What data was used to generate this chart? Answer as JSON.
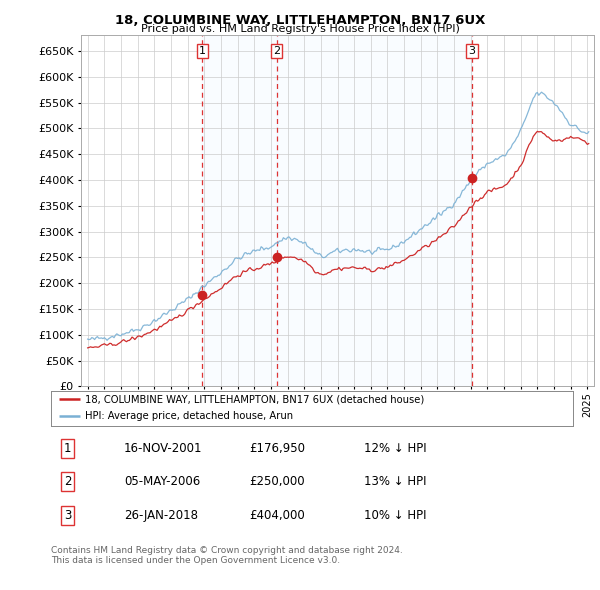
{
  "title": "18, COLUMBINE WAY, LITTLEHAMPTON, BN17 6UX",
  "subtitle": "Price paid vs. HM Land Registry's House Price Index (HPI)",
  "ytick_values": [
    0,
    50000,
    100000,
    150000,
    200000,
    250000,
    300000,
    350000,
    400000,
    450000,
    500000,
    550000,
    600000,
    650000
  ],
  "ylim": [
    0,
    680000
  ],
  "xlim_start": 1994.6,
  "xlim_end": 2025.4,
  "sale_dates": [
    2001.88,
    2006.34,
    2018.07
  ],
  "sale_prices": [
    176950,
    250000,
    404000
  ],
  "hpi_line_color": "#7ab0d4",
  "price_line_color": "#cc2222",
  "sale_dot_color": "#cc2222",
  "vline_color": "#dd3333",
  "shade_color": "#ddeeff",
  "label_numbers": [
    "1",
    "2",
    "3"
  ],
  "legend_label_red": "18, COLUMBINE WAY, LITTLEHAMPTON, BN17 6UX (detached house)",
  "legend_label_blue": "HPI: Average price, detached house, Arun",
  "table_rows": [
    [
      "1",
      "16-NOV-2001",
      "£176,950",
      "12% ↓ HPI"
    ],
    [
      "2",
      "05-MAY-2006",
      "£250,000",
      "13% ↓ HPI"
    ],
    [
      "3",
      "26-JAN-2018",
      "£404,000",
      "10% ↓ HPI"
    ]
  ],
  "footer_text": "Contains HM Land Registry data © Crown copyright and database right 2024.\nThis data is licensed under the Open Government Licence v3.0.",
  "background_color": "#ffffff",
  "grid_color": "#cccccc"
}
